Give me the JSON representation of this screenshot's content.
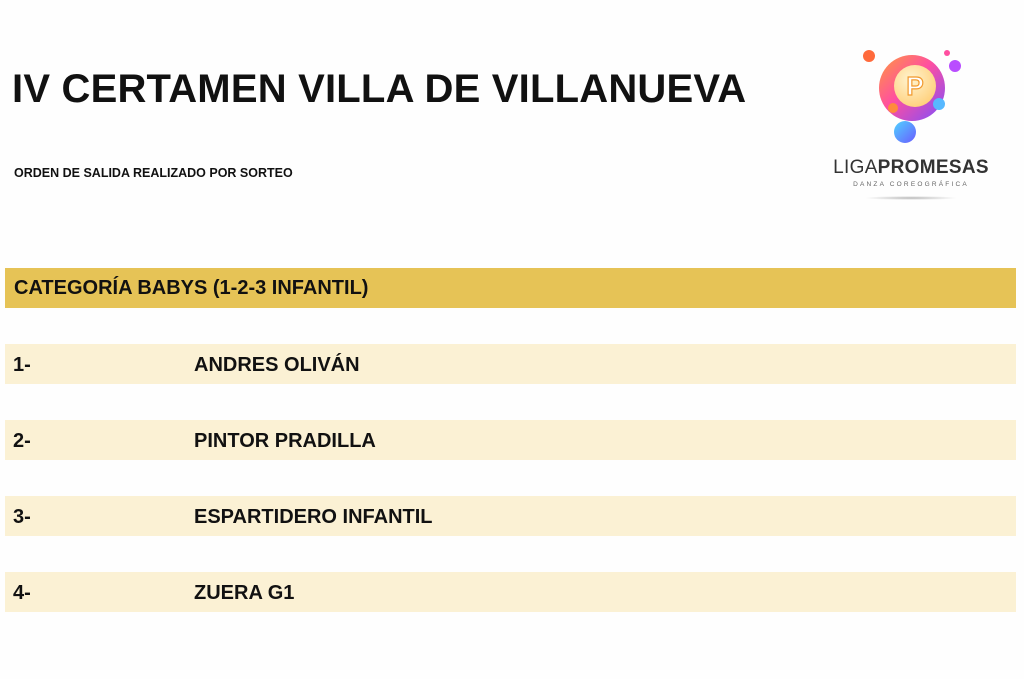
{
  "header": {
    "title": "IV CERTAMEN VILLA DE VILLANUEVA",
    "subtitle": "ORDEN DE SALIDA REALIZADO POR SORTEO"
  },
  "logo": {
    "letter": "P",
    "name_light": "LIGA",
    "name_bold": "PROMESAS",
    "tagline": "DANZA COREOGRÁFICA"
  },
  "category": {
    "label": "CATEGORÍA BABYS (1-2-3 INFANTIL)"
  },
  "entries": [
    {
      "number": "1-",
      "name": "ANDRES OLIVÁN"
    },
    {
      "number": "2-",
      "name": "PINTOR PRADILLA"
    },
    {
      "number": "3-",
      "name": "ESPARTIDERO INFANTIL"
    },
    {
      "number": "4-",
      "name": "ZUERA G1"
    }
  ],
  "colors": {
    "category_bar": "#e6c356",
    "row_background": "#fbf1d4",
    "text": "#111111"
  }
}
